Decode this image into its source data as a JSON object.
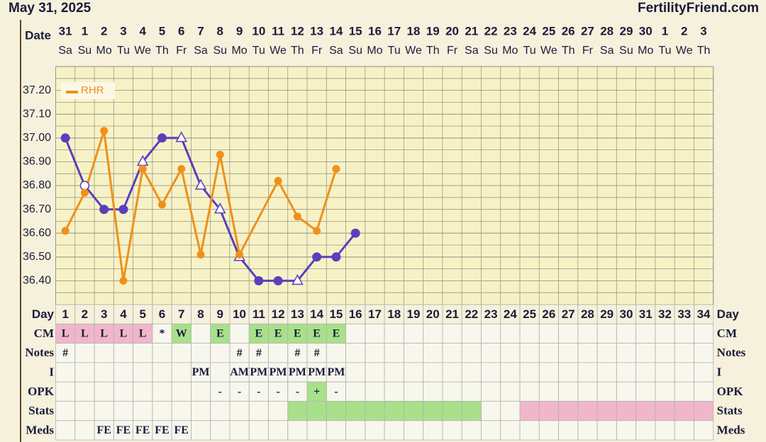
{
  "header": {
    "title": "May 31, 2025",
    "site": "FertilityFriend.com"
  },
  "chart_data": {
    "type": "line",
    "date_label": "Date",
    "categories": [
      "31",
      "1",
      "2",
      "3",
      "4",
      "5",
      "6",
      "7",
      "8",
      "9",
      "10",
      "11",
      "12",
      "13",
      "14",
      "15",
      "16",
      "17",
      "18",
      "19",
      "20",
      "21",
      "22",
      "23",
      "24",
      "25",
      "26",
      "27",
      "28",
      "29",
      "30",
      "1",
      "2",
      "3"
    ],
    "weekdays": [
      "Sa",
      "Su",
      "Mo",
      "Tu",
      "We",
      "Th",
      "Fr",
      "Sa",
      "Su",
      "Mo",
      "Tu",
      "We",
      "Th",
      "Fr",
      "Sa",
      "Su",
      "Mo",
      "Tu",
      "We",
      "Th",
      "Fr",
      "Sa",
      "Su",
      "Mo",
      "Tu",
      "We",
      "Th",
      "Fr",
      "Sa",
      "Su",
      "Mo",
      "Tu",
      "We",
      "Th"
    ],
    "series": [
      {
        "color": "#5a3fbd",
        "values": [
          37.0,
          36.8,
          36.7,
          36.7,
          36.9,
          37.0,
          37.0,
          36.8,
          36.7,
          36.5,
          36.4,
          36.4,
          36.4,
          36.5,
          36.5,
          36.6,
          null,
          null,
          null,
          null,
          null,
          null,
          null,
          null,
          null,
          null,
          null,
          null,
          null,
          null,
          null,
          null,
          null,
          null
        ],
        "markers": [
          "filled",
          "open",
          "filled",
          "filled",
          "triangle",
          "filled",
          "triangle",
          "triangle",
          "triangle",
          "triangle",
          "filled",
          "filled",
          "triangle",
          "filled",
          "filled",
          "filled",
          null,
          null,
          null,
          null,
          null,
          null,
          null,
          null,
          null,
          null,
          null,
          null,
          null,
          null,
          null,
          null,
          null,
          null
        ]
      },
      {
        "name": "RHR",
        "color": "#f0901a",
        "connect_gaps": true,
        "values": [
          36.61,
          36.77,
          37.03,
          36.4,
          36.87,
          36.72,
          36.87,
          36.51,
          36.93,
          36.51,
          null,
          36.82,
          36.67,
          36.61,
          36.87,
          null,
          null,
          null,
          null,
          null,
          null,
          null,
          null,
          null,
          null,
          null,
          null,
          null,
          null,
          null,
          null,
          null,
          null,
          null
        ]
      }
    ],
    "ylim": [
      36.3,
      37.3
    ],
    "yticks": [
      {
        "value": 37.2,
        "label": "37.20"
      },
      {
        "value": 37.1,
        "label": "37.10"
      },
      {
        "value": 37.0,
        "label": "37.00"
      },
      {
        "value": 36.9,
        "label": "36.90"
      },
      {
        "value": 36.8,
        "label": "36.80"
      },
      {
        "value": 36.7,
        "label": "36.70"
      },
      {
        "value": 36.6,
        "label": "36.60"
      },
      {
        "value": 36.5,
        "label": "36.50"
      },
      {
        "value": 36.4,
        "label": "36.40"
      }
    ],
    "grid": true,
    "legend": "upper left"
  },
  "table": {
    "rows": [
      {
        "label": "Day",
        "cells": [
          1,
          2,
          3,
          4,
          5,
          6,
          7,
          8,
          9,
          10,
          11,
          12,
          13,
          14,
          15,
          16,
          17,
          18,
          19,
          20,
          21,
          22,
          23,
          24,
          25,
          26,
          27,
          28,
          29,
          30,
          31,
          32,
          33,
          34
        ]
      },
      {
        "label": "CM",
        "cells": [
          "L",
          "L",
          "L",
          "L",
          "L",
          "*",
          "W",
          null,
          "E",
          null,
          "E",
          "E",
          "E",
          "E",
          "E",
          null,
          null,
          null,
          null,
          null,
          null,
          null,
          null,
          null,
          null,
          null,
          null,
          null,
          null,
          null,
          null,
          null,
          null,
          null
        ],
        "cell_colors": [
          "#f0b6cc",
          "#f0b6cc",
          "#f0b6cc",
          "#f0b6cc",
          "#f0b6cc",
          null,
          "#a8e08c",
          null,
          "#a8e08c",
          null,
          "#a8e08c",
          "#a8e08c",
          "#a8e08c",
          "#a8e08c",
          "#a8e08c",
          null,
          null,
          null,
          null,
          null,
          null,
          null,
          null,
          null,
          null,
          null,
          null,
          null,
          null,
          null,
          null,
          null,
          null,
          null
        ]
      },
      {
        "label": "Notes",
        "cells": [
          "#",
          null,
          null,
          null,
          null,
          null,
          null,
          null,
          null,
          "#",
          "#",
          null,
          "#",
          "#",
          null,
          null,
          null,
          null,
          null,
          null,
          null,
          null,
          null,
          null,
          null,
          null,
          null,
          null,
          null,
          null,
          null,
          null,
          null,
          null
        ]
      },
      {
        "label": "I",
        "cells": [
          null,
          null,
          null,
          null,
          null,
          null,
          null,
          "PM",
          null,
          "AM",
          "PM",
          "PM",
          "PM",
          "PM",
          "PM",
          null,
          null,
          null,
          null,
          null,
          null,
          null,
          null,
          null,
          null,
          null,
          null,
          null,
          null,
          null,
          null,
          null,
          null,
          null
        ]
      },
      {
        "label": "OPK",
        "cells": [
          null,
          null,
          null,
          null,
          null,
          null,
          null,
          null,
          "-",
          "-",
          "-",
          "-",
          "-",
          "+",
          "-",
          null,
          null,
          null,
          null,
          null,
          null,
          null,
          null,
          null,
          null,
          null,
          null,
          null,
          null,
          null,
          null,
          null,
          null,
          null
        ],
        "cell_colors": [
          null,
          null,
          null,
          null,
          null,
          null,
          null,
          null,
          null,
          null,
          null,
          null,
          null,
          "#a8e08c",
          null,
          null,
          null,
          null,
          null,
          null,
          null,
          null,
          null,
          null,
          null,
          null,
          null,
          null,
          null,
          null,
          null,
          null,
          null,
          null
        ]
      },
      {
        "label": "Stats",
        "cells": [
          null,
          null,
          null,
          null,
          null,
          null,
          null,
          null,
          null,
          null,
          null,
          null,
          null,
          null,
          null,
          null,
          null,
          null,
          null,
          null,
          null,
          null,
          null,
          null,
          null,
          null,
          null,
          null,
          null,
          null,
          null,
          null,
          null,
          null
        ],
        "cell_colors": [
          null,
          null,
          null,
          null,
          null,
          null,
          null,
          null,
          null,
          null,
          null,
          null,
          "#a8e08c",
          "#a8e08c",
          "#a8e08c",
          "#a8e08c",
          "#a8e08c",
          "#a8e08c",
          "#a8e08c",
          "#a8e08c",
          "#a8e08c",
          "#a8e08c",
          null,
          null,
          "#f0b6cc",
          "#f0b6cc",
          "#f0b6cc",
          "#f0b6cc",
          "#f0b6cc",
          "#f0b6cc",
          "#f0b6cc",
          "#f0b6cc",
          "#f0b6cc",
          "#f0b6cc"
        ]
      },
      {
        "label": "Meds",
        "cells": [
          null,
          null,
          "FE",
          "FE",
          "FE",
          "FE",
          "FE",
          null,
          null,
          null,
          null,
          null,
          null,
          null,
          null,
          null,
          null,
          null,
          null,
          null,
          null,
          null,
          null,
          null,
          null,
          null,
          null,
          null,
          null,
          null,
          null,
          null,
          null,
          null
        ]
      }
    ]
  }
}
